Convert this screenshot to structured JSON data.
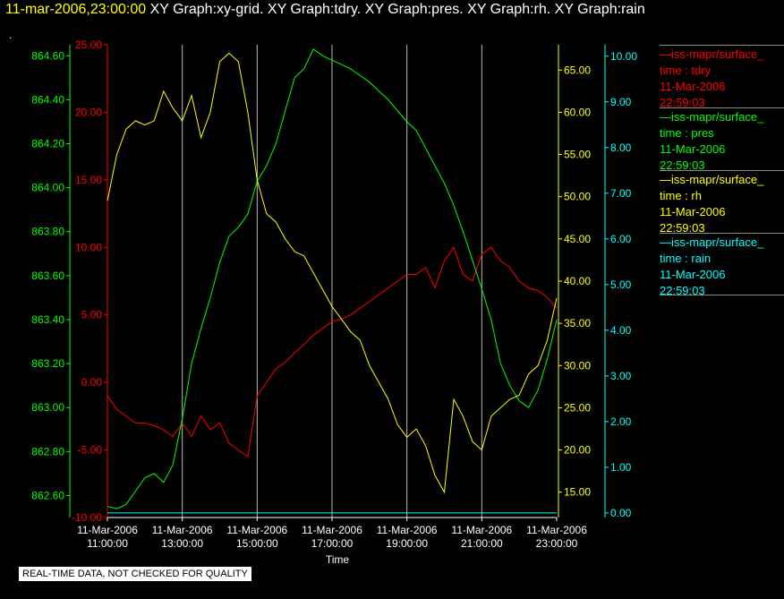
{
  "header": {
    "timestamp": "11-mar-2006,23:00:00",
    "titles": "XY Graph:xy-grid.  XY Graph:tdry.  XY Graph:pres.  XY Graph:rh.  XY Graph:rain"
  },
  "marker": ".",
  "disclaimer": "REAL-TIME DATA, NOT CHECKED FOR QUALITY",
  "legend": [
    {
      "name": "—iss-mapr/surface_",
      "field": "time : tdry",
      "date": "11-Mar-2006",
      "time": "22:59:03",
      "color": "#ff0000"
    },
    {
      "name": "—iss-mapr/surface_",
      "field": "time : pres",
      "date": "11-Mar-2006",
      "time": "22:59:03",
      "color": "#00ff00"
    },
    {
      "name": "—iss-mapr/surface_",
      "field": "time : rh",
      "date": "11-Mar-2006",
      "time": "22:59:03",
      "color": "#ffff00"
    },
    {
      "name": "—iss-mapr/surface_",
      "field": "time : rain",
      "date": "11-Mar-2006",
      "time": "22:59:03",
      "color": "#00ffff"
    }
  ],
  "chart_data": {
    "type": "line",
    "xlabel": "Time",
    "xlim": [
      "11-Mar-2006 11:00:00",
      "11-Mar-2006 23:00:00"
    ],
    "x_ticks": [
      [
        "11-Mar-2006",
        "11:00:00"
      ],
      [
        "11-Mar-2006",
        "13:00:00"
      ],
      [
        "11-Mar-2006",
        "15:00:00"
      ],
      [
        "11-Mar-2006",
        "17:00:00"
      ],
      [
        "11-Mar-2006",
        "19:00:00"
      ],
      [
        "11-Mar-2006",
        "21:00:00"
      ],
      [
        "11-Mar-2006",
        "23:00:00"
      ]
    ],
    "grid": "vertical",
    "axes": {
      "tdry": {
        "side": "left",
        "range": [
          -10,
          25
        ],
        "ticks": [
          "-10.00",
          "-5.00",
          "0.00",
          "5.00",
          "10.00",
          "15.00",
          "20.00",
          "25.00"
        ],
        "color": "#ff0000"
      },
      "pres": {
        "side": "left",
        "range": [
          862.5,
          864.65
        ],
        "ticks": [
          "862.60",
          "862.80",
          "863.00",
          "863.20",
          "863.40",
          "863.60",
          "863.80",
          "864.00",
          "864.20",
          "864.40",
          "864.60"
        ],
        "color": "#00ff00"
      },
      "rh": {
        "side": "right",
        "range": [
          12,
          68
        ],
        "ticks": [
          "15.00",
          "20.00",
          "25.00",
          "30.00",
          "35.00",
          "40.00",
          "45.00",
          "50.00",
          "55.00",
          "60.00",
          "65.00"
        ],
        "color": "#ffff00"
      },
      "rain": {
        "side": "right",
        "range": [
          -0.1,
          10.25
        ],
        "ticks": [
          "0.00",
          "1.00",
          "2.00",
          "3.00",
          "4.00",
          "5.00",
          "6.00",
          "7.00",
          "8.00",
          "9.00",
          "10.00"
        ],
        "color": "#00ffff"
      }
    },
    "series": [
      {
        "name": "tdry",
        "axis": "tdry",
        "color": "#ff0000",
        "x": [
          11.0,
          11.25,
          11.5,
          11.75,
          12.0,
          12.25,
          12.5,
          12.75,
          13.0,
          13.25,
          13.5,
          13.75,
          14.0,
          14.25,
          14.5,
          14.75,
          15.0,
          15.25,
          15.5,
          15.75,
          16.0,
          16.25,
          16.5,
          16.75,
          17.0,
          17.25,
          17.5,
          17.75,
          18.0,
          18.25,
          18.5,
          18.75,
          19.0,
          19.25,
          19.5,
          19.75,
          20.0,
          20.25,
          20.5,
          20.75,
          21.0,
          21.25,
          21.5,
          21.75,
          22.0,
          22.25,
          22.5,
          22.75,
          23.0
        ],
        "y": [
          -1.0,
          -2.0,
          -2.5,
          -3.0,
          -3.0,
          -3.2,
          -3.5,
          -4.0,
          -3.0,
          -4.0,
          -2.5,
          -3.5,
          -3.0,
          -4.5,
          -5.0,
          -5.5,
          -1.0,
          0.0,
          1.0,
          1.5,
          2.2,
          2.8,
          3.5,
          4.0,
          4.5,
          4.7,
          5.0,
          5.5,
          6.0,
          6.5,
          7.0,
          7.5,
          8.0,
          8.0,
          8.5,
          7.0,
          9.0,
          10.0,
          8.0,
          7.5,
          9.5,
          10.0,
          9.0,
          8.5,
          7.5,
          7.0,
          6.8,
          6.3,
          5.5
        ]
      },
      {
        "name": "pres",
        "axis": "pres",
        "color": "#00ff00",
        "x": [
          11.0,
          11.25,
          11.5,
          11.75,
          12.0,
          12.25,
          12.5,
          12.75,
          13.0,
          13.25,
          13.5,
          13.75,
          14.0,
          14.25,
          14.5,
          14.75,
          15.0,
          15.25,
          15.5,
          15.75,
          16.0,
          16.25,
          16.5,
          16.75,
          17.0,
          17.25,
          17.5,
          17.75,
          18.0,
          18.25,
          18.5,
          18.75,
          19.0,
          19.25,
          19.5,
          19.75,
          20.0,
          20.25,
          20.5,
          20.75,
          21.0,
          21.25,
          21.5,
          21.75,
          22.0,
          22.25,
          22.5,
          22.75,
          23.0
        ],
        "y": [
          862.55,
          862.54,
          862.56,
          862.62,
          862.68,
          862.7,
          862.66,
          862.74,
          862.95,
          863.2,
          863.36,
          863.5,
          863.66,
          863.78,
          863.82,
          863.88,
          864.03,
          864.1,
          864.2,
          864.35,
          864.5,
          864.54,
          864.63,
          864.6,
          864.58,
          864.56,
          864.54,
          864.51,
          864.48,
          864.44,
          864.4,
          864.35,
          864.3,
          864.26,
          864.18,
          864.1,
          864.02,
          863.92,
          863.8,
          863.67,
          863.54,
          863.4,
          863.2,
          863.1,
          863.03,
          863.0,
          863.08,
          863.22,
          863.4
        ]
      },
      {
        "name": "rh",
        "axis": "rh",
        "color": "#ffff00",
        "x": [
          11.0,
          11.25,
          11.5,
          11.75,
          12.0,
          12.25,
          12.5,
          12.75,
          13.0,
          13.25,
          13.5,
          13.75,
          14.0,
          14.25,
          14.5,
          14.75,
          15.0,
          15.25,
          15.5,
          15.75,
          16.0,
          16.25,
          16.5,
          16.75,
          17.0,
          17.25,
          17.5,
          17.75,
          18.0,
          18.25,
          18.5,
          18.75,
          19.0,
          19.25,
          19.5,
          19.75,
          20.0,
          20.25,
          20.5,
          20.75,
          21.0,
          21.25,
          21.5,
          21.75,
          22.0,
          22.25,
          22.5,
          22.75,
          23.0
        ],
        "y": [
          49.5,
          55.0,
          58.0,
          59.0,
          58.5,
          59.0,
          62.5,
          60.5,
          59.0,
          62.0,
          57.0,
          60.0,
          66.0,
          67.0,
          66.0,
          60.0,
          52.0,
          48.0,
          47.0,
          45.0,
          43.5,
          43.0,
          41.0,
          39.0,
          37.0,
          35.5,
          34.0,
          33.0,
          30.0,
          28.0,
          26.0,
          23.0,
          21.5,
          22.5,
          20.5,
          17.0,
          15.0,
          26.0,
          24.0,
          21.0,
          20.0,
          24.0,
          25.0,
          26.0,
          26.5,
          29.0,
          30.0,
          33.0,
          38.0
        ]
      },
      {
        "name": "rain",
        "axis": "rain",
        "color": "#00ffff",
        "x": [
          11.0,
          23.0
        ],
        "y": [
          0.0,
          0.0
        ]
      }
    ]
  }
}
